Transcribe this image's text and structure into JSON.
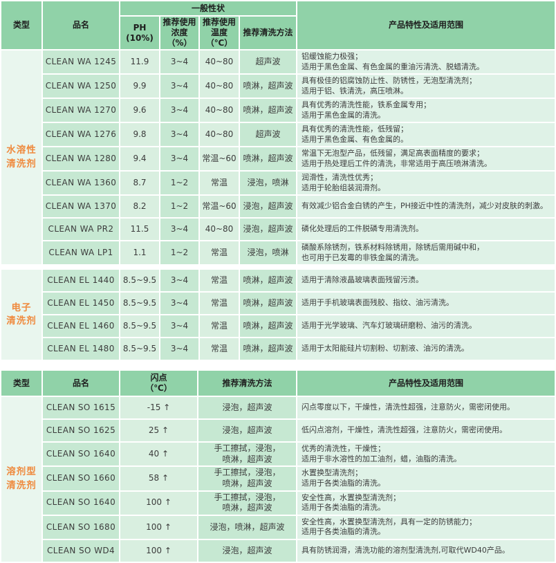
{
  "colors": {
    "header_bg": "#90d2a8",
    "cell_medium": "#c6e8d2",
    "cell_light": "#d9efe0",
    "desc_bg": "#dff2e7",
    "type_bg": "#e9f6ee",
    "type_text": "#ef8a3e",
    "text": "#3c3c3c"
  },
  "table1": {
    "headers": {
      "type": "类型",
      "name": "品名",
      "general": "一般性状",
      "ph": "PH\n(10%)",
      "concentration": "推荐使用\n浓度（%）",
      "temperature": "推荐使用\n温度（℃）",
      "method": "推荐清洗方法",
      "features": "产品特性及适用范围"
    },
    "groups": [
      {
        "type": "水溶性\n清洗剂",
        "rows": [
          {
            "name": "CLEAN WA 1245",
            "ph": "11.9",
            "concentration": "3~4",
            "temperature": "40~80",
            "method": "超声波",
            "desc": [
              "铝缓蚀能力极强；",
              "适用于黑色金属、有色金属的重油污清洗、脱蜡清洗。"
            ]
          },
          {
            "name": "CLEAN WA 1250",
            "ph": "9.9",
            "concentration": "3~4",
            "temperature": "40~80",
            "method": "喷淋，超声波",
            "desc": [
              "具有极佳的铝腐蚀防止性、防锈性，无泡型清洗剂；",
              "适用于铝、铁清洗，高压喷淋。"
            ]
          },
          {
            "name": "CLEAN WA 1270",
            "ph": "9.6",
            "concentration": "3~4",
            "temperature": "40~80",
            "method": "喷淋，超声波",
            "desc": [
              "具有优秀的清洗性能，铁系金属专用；",
              "适用于黑色金属的清洗。"
            ]
          },
          {
            "name": "CLEAN WA 1276",
            "ph": "9.8",
            "concentration": "3~4",
            "temperature": "40~80",
            "method": "超声波",
            "desc": [
              "具有优秀的清洗性能，低残留；",
              "适用于黑色金属、有色金属的。"
            ]
          },
          {
            "name": "CLEAN WA 1280",
            "ph": "9.4",
            "concentration": "3~4",
            "temperature": "常温~60",
            "method": "喷淋，超声波",
            "desc": [
              "常温下无泡型产品，低残留，满足高表面精度的要求；",
              "适用于热处理后工件的清洗，非常适用于高压喷淋清洗。"
            ]
          },
          {
            "name": "CLEAN WA 1360",
            "ph": "8.7",
            "concentration": "1~2",
            "temperature": "常温",
            "method": "浸泡，喷淋",
            "desc": [
              "润滑性，清洗性优秀；",
              "适用于轮胎组装润滑剂。"
            ]
          },
          {
            "name": "CLEAN WA 1370",
            "ph": "8.2",
            "concentration": "1~2",
            "temperature": "常温~60",
            "method": "浸泡，超声波",
            "desc": [
              "有效减少铝合金白锈的产生，PH接近中性的清洗剂，减少对皮肤的刺激。"
            ]
          },
          {
            "name": "CLEAN WA PR2",
            "ph": "11.5",
            "concentration": "3~4",
            "temperature": "40~80",
            "method": "浸泡，超声波",
            "desc": [
              "磷化处理后的工件脱磷专用清洗剂。"
            ]
          },
          {
            "name": "CLEAN WA LP1",
            "ph": "1.1",
            "concentration": "1~2",
            "temperature": "常温",
            "method": "浸泡，喷淋",
            "desc": [
              "磷酸系除锈剂，铁系材料除锈用，除锈后需用碱中和，",
              "也可用于已发霉的非铁金属的清洗。"
            ]
          }
        ]
      },
      {
        "type": "电子\n清洗剂",
        "rows": [
          {
            "name": "CLEAN EL 1440",
            "ph": "8.5~9.5",
            "concentration": "3~4",
            "temperature": "常温",
            "method": "喷淋，超声波",
            "desc": [
              "适用于清除液晶玻璃表面残留污渍。"
            ]
          },
          {
            "name": "CLEAN EL 1450",
            "ph": "8.5~9.5",
            "concentration": "3~4",
            "temperature": "常温",
            "method": "喷淋，超声波",
            "desc": [
              "适用于手机玻璃表面残胶、指纹、油污清洗。"
            ]
          },
          {
            "name": "CLEAN EL 1460",
            "ph": "8.5~9.5",
            "concentration": "3~4",
            "temperature": "常温",
            "method": "喷淋，超声波",
            "desc": [
              "适用于光学玻璃、汽车灯玻璃研磨粉、油污的清洗。"
            ]
          },
          {
            "name": "CLEAN EL 1480",
            "ph": "8.5~9.5",
            "concentration": "3~4",
            "temperature": "常温",
            "method": "喷淋，超声波",
            "desc": [
              "适用于太阳能硅片切割粉、切割液、油污的清洗。"
            ]
          }
        ]
      }
    ]
  },
  "table2": {
    "headers": {
      "type": "类型",
      "name": "品名",
      "flash_point": "闪点\n（℃）",
      "method": "推荐清洗方法",
      "features": "产品特性及适用范围"
    },
    "groups": [
      {
        "type": "溶剂型\n清洗剂",
        "rows": [
          {
            "name": "CLEAN SO 1615",
            "flash_point": "-15 ↑",
            "method": "浸泡，超声波",
            "desc": [
              "闪点零度以下，干燥性，清洗性超强，注意防火，需密闭使用。"
            ]
          },
          {
            "name": "CLEAN SO 1625",
            "flash_point": "25 ↑",
            "method": "浸泡，超声波",
            "desc": [
              "低闪点溶剂，干燥性，清洗性超强，注意防火，需密闭使用。"
            ]
          },
          {
            "name": "CLEAN SO 1640",
            "flash_point": "40 ↑",
            "method": "手工擦拭，浸泡，\n喷淋，超声波",
            "desc": [
              "优秀的清洗性，干燥性；",
              "适用于非水溶性的加工油剂，蜡，油脂的清洗。"
            ]
          },
          {
            "name": "CLEAN SO 1660",
            "flash_point": "58 ↑",
            "method": "手工擦拭，浸泡，\n喷淋，超声波",
            "desc": [
              "水置换型清洗剂；",
              "适用于各类油脂的清洗。"
            ]
          },
          {
            "name": "CLEAN SO 1640",
            "flash_point": "100 ↑",
            "method": "手工擦拭，浸泡，\n喷淋，超声波",
            "desc": [
              "安全性高，水置换型清洗剂；",
              "适用于各类油脂的清洗。"
            ]
          },
          {
            "name": "CLEAN SO 1680",
            "flash_point": "100 ↑",
            "method": "浸泡，喷淋，超声波",
            "desc": [
              "安全性高，水置换型清洗剂，具有一定的防锈能力；",
              "适用于各类油脂的清洗。"
            ]
          },
          {
            "name": "CLEAN SO WD4",
            "flash_point": "100 ↑",
            "method": "浸泡，超声波",
            "desc": [
              "具有防锈润滑，清洗功能的溶剂型清洗剂,可取代WD40产品。"
            ]
          }
        ]
      }
    ]
  }
}
